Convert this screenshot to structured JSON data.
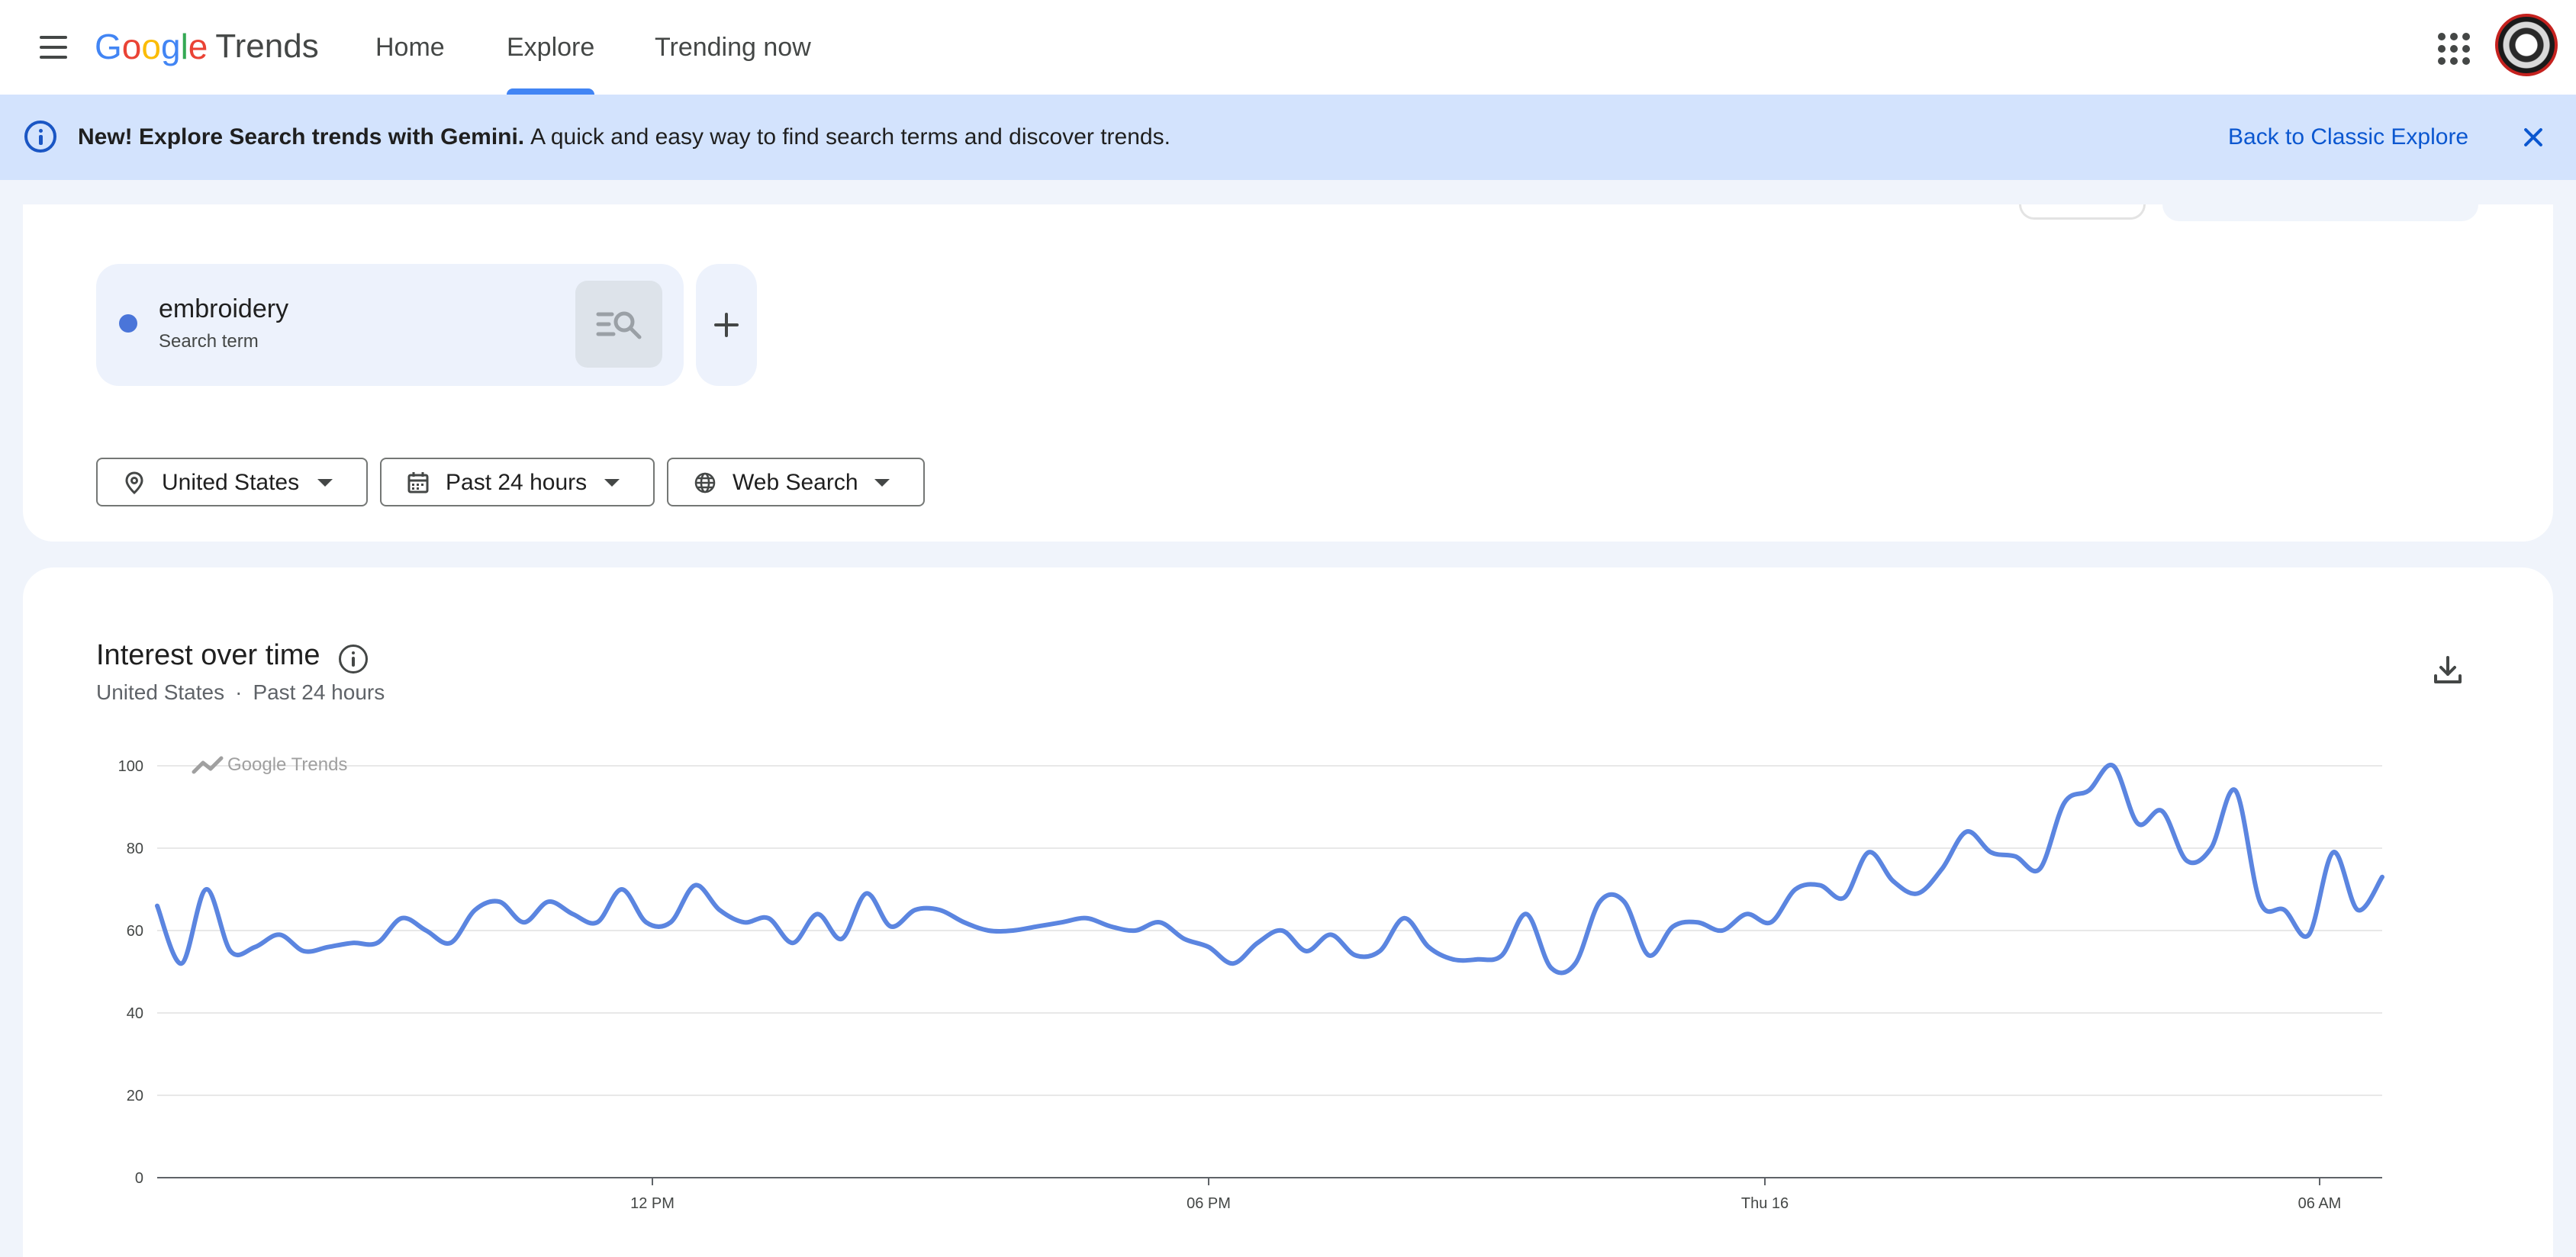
{
  "header": {
    "logo_letters": [
      "G",
      "o",
      "o",
      "g",
      "l",
      "e"
    ],
    "product": "Trends",
    "tabs": [
      {
        "label": "Home",
        "active": false
      },
      {
        "label": "Explore",
        "active": true
      },
      {
        "label": "Trending now",
        "active": false
      }
    ],
    "icons": {
      "menu": "hamburger-menu-icon",
      "apps": "apps-grid-icon"
    },
    "accent_color": "#4285F4"
  },
  "banner": {
    "bold_text": "New! Explore Search trends with Gemini.",
    "text": "A quick and easy way to find search terms and discover trends.",
    "link": "Back to Classic Explore",
    "background_color": "#d3e3fd"
  },
  "search": {
    "term": "embroidery",
    "term_type": "Search term",
    "term_color": "#4a75d9"
  },
  "filters": {
    "location": "United States",
    "time_range": "Past 24 hours",
    "property": "Web Search"
  },
  "chart": {
    "title": "Interest over time",
    "subtitle_location": "United States",
    "subtitle_separator": "·",
    "subtitle_time": "Past 24 hours",
    "watermark": "Google Trends"
  },
  "chart_data": {
    "type": "line",
    "title": "Interest over time",
    "xlabel": "",
    "ylabel": "",
    "ylim": [
      0,
      100
    ],
    "yticks": [
      0,
      20,
      40,
      60,
      80,
      100
    ],
    "xtick_labels": [
      "12 PM",
      "06 PM",
      "Thu 16",
      "06 AM"
    ],
    "grid": true,
    "series": [
      {
        "name": "embroidery",
        "color": "#5b85e0",
        "values": [
          66,
          52,
          70,
          55,
          56,
          59,
          55,
          56,
          57,
          57,
          63,
          60,
          57,
          65,
          67,
          62,
          67,
          64,
          62,
          70,
          62,
          62,
          71,
          65,
          62,
          63,
          57,
          64,
          58,
          69,
          61,
          65,
          65,
          62,
          60,
          60,
          61,
          62,
          63,
          61,
          60,
          62,
          58,
          56,
          52,
          57,
          60,
          55,
          59,
          54,
          55,
          63,
          56,
          53,
          53,
          54,
          64,
          51,
          52,
          67,
          67,
          54,
          61,
          62,
          60,
          64,
          62,
          70,
          71,
          68,
          79,
          72,
          69,
          75,
          84,
          79,
          78,
          75,
          91,
          94,
          100,
          86,
          89,
          77,
          80,
          94,
          67,
          65,
          59,
          79,
          65,
          73
        ]
      }
    ]
  }
}
